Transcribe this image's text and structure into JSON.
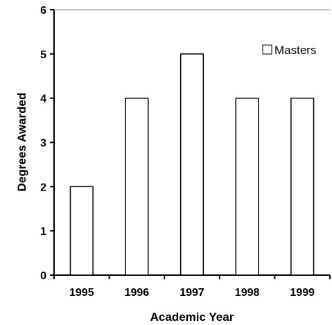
{
  "chart_data": {
    "type": "bar",
    "categories": [
      "1995",
      "1996",
      "1997",
      "1998",
      "1999"
    ],
    "series": [
      {
        "name": "Masters",
        "values": [
          2,
          4,
          5,
          4,
          4
        ]
      }
    ],
    "title": "",
    "xlabel": "Academic Year",
    "ylabel": "Degrees Awarded",
    "ylim": [
      0,
      6
    ],
    "yticks": [
      "0",
      "1",
      "2",
      "3",
      "4",
      "5",
      "6"
    ],
    "grid": false,
    "legend": {
      "position": "top-right",
      "entries": [
        "Masters"
      ]
    },
    "colors": {
      "bar_fill": "#ffffff",
      "bar_stroke": "#000000",
      "axis": "#000000",
      "top_line": "#808080"
    }
  }
}
